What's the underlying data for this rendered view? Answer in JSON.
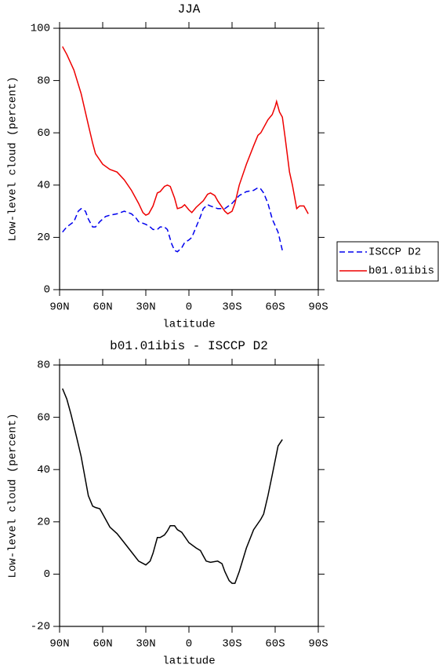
{
  "chart_data": [
    {
      "type": "line",
      "title": "JJA",
      "xlabel": "latitude",
      "ylabel": "Low-level cloud (percent)",
      "xlim": [
        90,
        -90
      ],
      "xticks": [
        {
          "value": 90,
          "label": "90N"
        },
        {
          "value": 60,
          "label": "60N"
        },
        {
          "value": 30,
          "label": "30N"
        },
        0,
        {
          "value": -30,
          "label": "30S"
        },
        {
          "value": -60,
          "label": "60S"
        },
        {
          "value": -90,
          "label": "90S"
        }
      ],
      "ylim": [
        0,
        100
      ],
      "yticks": [
        0,
        20,
        40,
        60,
        80,
        100
      ],
      "legend": "right",
      "series": [
        {
          "name": "ISCCP D2",
          "color": "#0000ee",
          "dash": "dashed",
          "x": [
            88,
            85,
            80,
            77,
            75,
            72,
            70,
            67,
            65,
            62,
            58,
            55,
            50,
            45,
            40,
            37,
            35,
            30,
            27,
            25,
            22,
            20,
            17,
            15,
            12,
            10,
            8,
            5,
            3,
            0,
            -2,
            -5,
            -8,
            -10,
            -13,
            -15,
            -20,
            -25,
            -30,
            -35,
            -40,
            -45,
            -48,
            -50,
            -52,
            -55,
            -58,
            -62,
            -65
          ],
          "values": [
            22,
            24,
            26,
            30,
            31,
            30,
            27,
            24,
            24,
            26,
            28,
            28.5,
            29,
            30,
            29,
            27.5,
            26,
            25,
            24,
            23,
            23,
            24,
            24,
            23,
            17.5,
            15,
            14.5,
            16,
            18,
            19,
            20,
            24,
            28,
            31,
            32.5,
            32,
            31,
            31,
            33,
            36,
            37.5,
            38,
            39,
            38.5,
            37,
            33,
            27,
            22,
            15
          ]
        },
        {
          "name": "b01.01ibis",
          "color": "#ee0000",
          "dash": "solid",
          "x": [
            88,
            85,
            80,
            75,
            70,
            67,
            65,
            60,
            55,
            50,
            45,
            40,
            35,
            32,
            30,
            28,
            25,
            22,
            20,
            17,
            15,
            13,
            10,
            8,
            5,
            3,
            0,
            -2,
            -5,
            -10,
            -13,
            -15,
            -18,
            -20,
            -25,
            -27,
            -30,
            -32,
            -35,
            -40,
            -45,
            -48,
            -50,
            -55,
            -58,
            -60,
            -61,
            -63,
            -65,
            -67,
            -70,
            -72,
            -75,
            -77,
            -80,
            -83
          ],
          "values": [
            93,
            90,
            84,
            75,
            63,
            56,
            52,
            48,
            46,
            45,
            42,
            38,
            33,
            29.5,
            28.5,
            29,
            32,
            37,
            37.5,
            39.5,
            40,
            39.5,
            35,
            31,
            31.5,
            32.5,
            30.5,
            29.5,
            31.5,
            34,
            36.5,
            37,
            36,
            34,
            30,
            29,
            30,
            33,
            40,
            48,
            55,
            59,
            60,
            65,
            67,
            70,
            72,
            68,
            66,
            58,
            45,
            40,
            31,
            32,
            32,
            29
          ]
        }
      ]
    },
    {
      "type": "line",
      "title": "b01.01ibis - ISCCP D2",
      "xlabel": "latitude",
      "ylabel": "Low-level cloud (percent)",
      "xlim": [
        90,
        -90
      ],
      "xticks": [
        {
          "value": 90,
          "label": "90N"
        },
        {
          "value": 60,
          "label": "60N"
        },
        {
          "value": 30,
          "label": "30N"
        },
        0,
        {
          "value": -30,
          "label": "30S"
        },
        {
          "value": -60,
          "label": "60S"
        },
        {
          "value": -90,
          "label": "90S"
        }
      ],
      "ylim": [
        -20,
        80
      ],
      "yticks": [
        -20,
        0,
        20,
        40,
        60,
        80
      ],
      "color": "#000000",
      "x": [
        88,
        85,
        82,
        78,
        75,
        70,
        67,
        65,
        62,
        60,
        55,
        50,
        45,
        40,
        35,
        30,
        27,
        25,
        22,
        20,
        17,
        15,
        13,
        10,
        8,
        5,
        0,
        -5,
        -8,
        -10,
        -12,
        -15,
        -20,
        -23,
        -25,
        -28,
        -30,
        -32,
        -35,
        -40,
        -45,
        -50,
        -52,
        -55,
        -58,
        -62,
        -65
      ],
      "values": [
        71,
        67,
        61,
        52,
        45,
        30,
        26,
        25.5,
        25,
        23,
        18,
        15.5,
        12,
        8.5,
        5,
        3.5,
        5,
        8,
        14,
        14,
        15,
        16.5,
        18.5,
        18.5,
        17,
        16,
        12,
        10,
        9,
        7,
        5,
        4.5,
        5,
        4,
        1,
        -2.5,
        -3.5,
        -3.5,
        1,
        10,
        17,
        21,
        23,
        30,
        38,
        49,
        51.5
      ]
    }
  ]
}
